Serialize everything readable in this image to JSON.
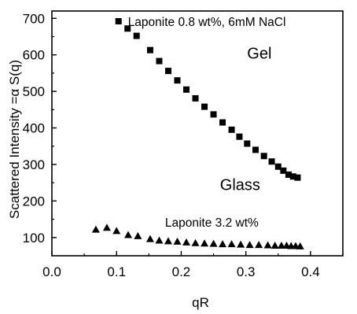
{
  "chart_data": {
    "type": "scatter",
    "xlabel": "qR",
    "ylabel": "Scattered Intensity =α S(q)",
    "xlim": [
      0.0,
      0.45
    ],
    "ylim": [
      50,
      720
    ],
    "xticks": [
      "0.0",
      "0.1",
      "0.2",
      "0.3",
      "0.4"
    ],
    "yticks": [
      "100",
      "200",
      "300",
      "400",
      "500",
      "600",
      "700"
    ],
    "grid": false,
    "series": [
      {
        "name": "Laponite 0.8 wt%, 6mM NaCl",
        "marker": "square",
        "color": "#000000",
        "points": [
          [
            0.103,
            692
          ],
          [
            0.117,
            672
          ],
          [
            0.131,
            652
          ],
          [
            0.152,
            613
          ],
          [
            0.166,
            583
          ],
          [
            0.18,
            556
          ],
          [
            0.194,
            530
          ],
          [
            0.208,
            505
          ],
          [
            0.222,
            481
          ],
          [
            0.236,
            458
          ],
          [
            0.25,
            437
          ],
          [
            0.264,
            415
          ],
          [
            0.278,
            395
          ],
          [
            0.29,
            376
          ],
          [
            0.302,
            357
          ],
          [
            0.315,
            340
          ],
          [
            0.328,
            323
          ],
          [
            0.34,
            308
          ],
          [
            0.35,
            294
          ],
          [
            0.358,
            283
          ],
          [
            0.366,
            272
          ],
          [
            0.373,
            267
          ],
          [
            0.38,
            264
          ]
        ]
      },
      {
        "name": "Laponite 3.2 wt%",
        "marker": "triangle",
        "color": "#000000",
        "points": [
          [
            0.068,
            122
          ],
          [
            0.085,
            127
          ],
          [
            0.1,
            118
          ],
          [
            0.118,
            107
          ],
          [
            0.133,
            104
          ],
          [
            0.152,
            96
          ],
          [
            0.166,
            92
          ],
          [
            0.18,
            90
          ],
          [
            0.194,
            89
          ],
          [
            0.208,
            87
          ],
          [
            0.222,
            85
          ],
          [
            0.236,
            84
          ],
          [
            0.25,
            83
          ],
          [
            0.264,
            82
          ],
          [
            0.278,
            82
          ],
          [
            0.292,
            81
          ],
          [
            0.306,
            80
          ],
          [
            0.32,
            80
          ],
          [
            0.334,
            79
          ],
          [
            0.345,
            78
          ],
          [
            0.355,
            78
          ],
          [
            0.363,
            78
          ],
          [
            0.37,
            77
          ],
          [
            0.377,
            77
          ],
          [
            0.384,
            76
          ]
        ]
      }
    ],
    "annotations": [
      {
        "text": "Gel",
        "x": 0.302,
        "y": 590,
        "size": "big"
      },
      {
        "text": "Glass",
        "x": 0.26,
        "y": 230,
        "size": "big"
      },
      {
        "text": "Laponite 3.2 wt%",
        "x": 0.175,
        "y": 130,
        "size": "small"
      }
    ]
  }
}
